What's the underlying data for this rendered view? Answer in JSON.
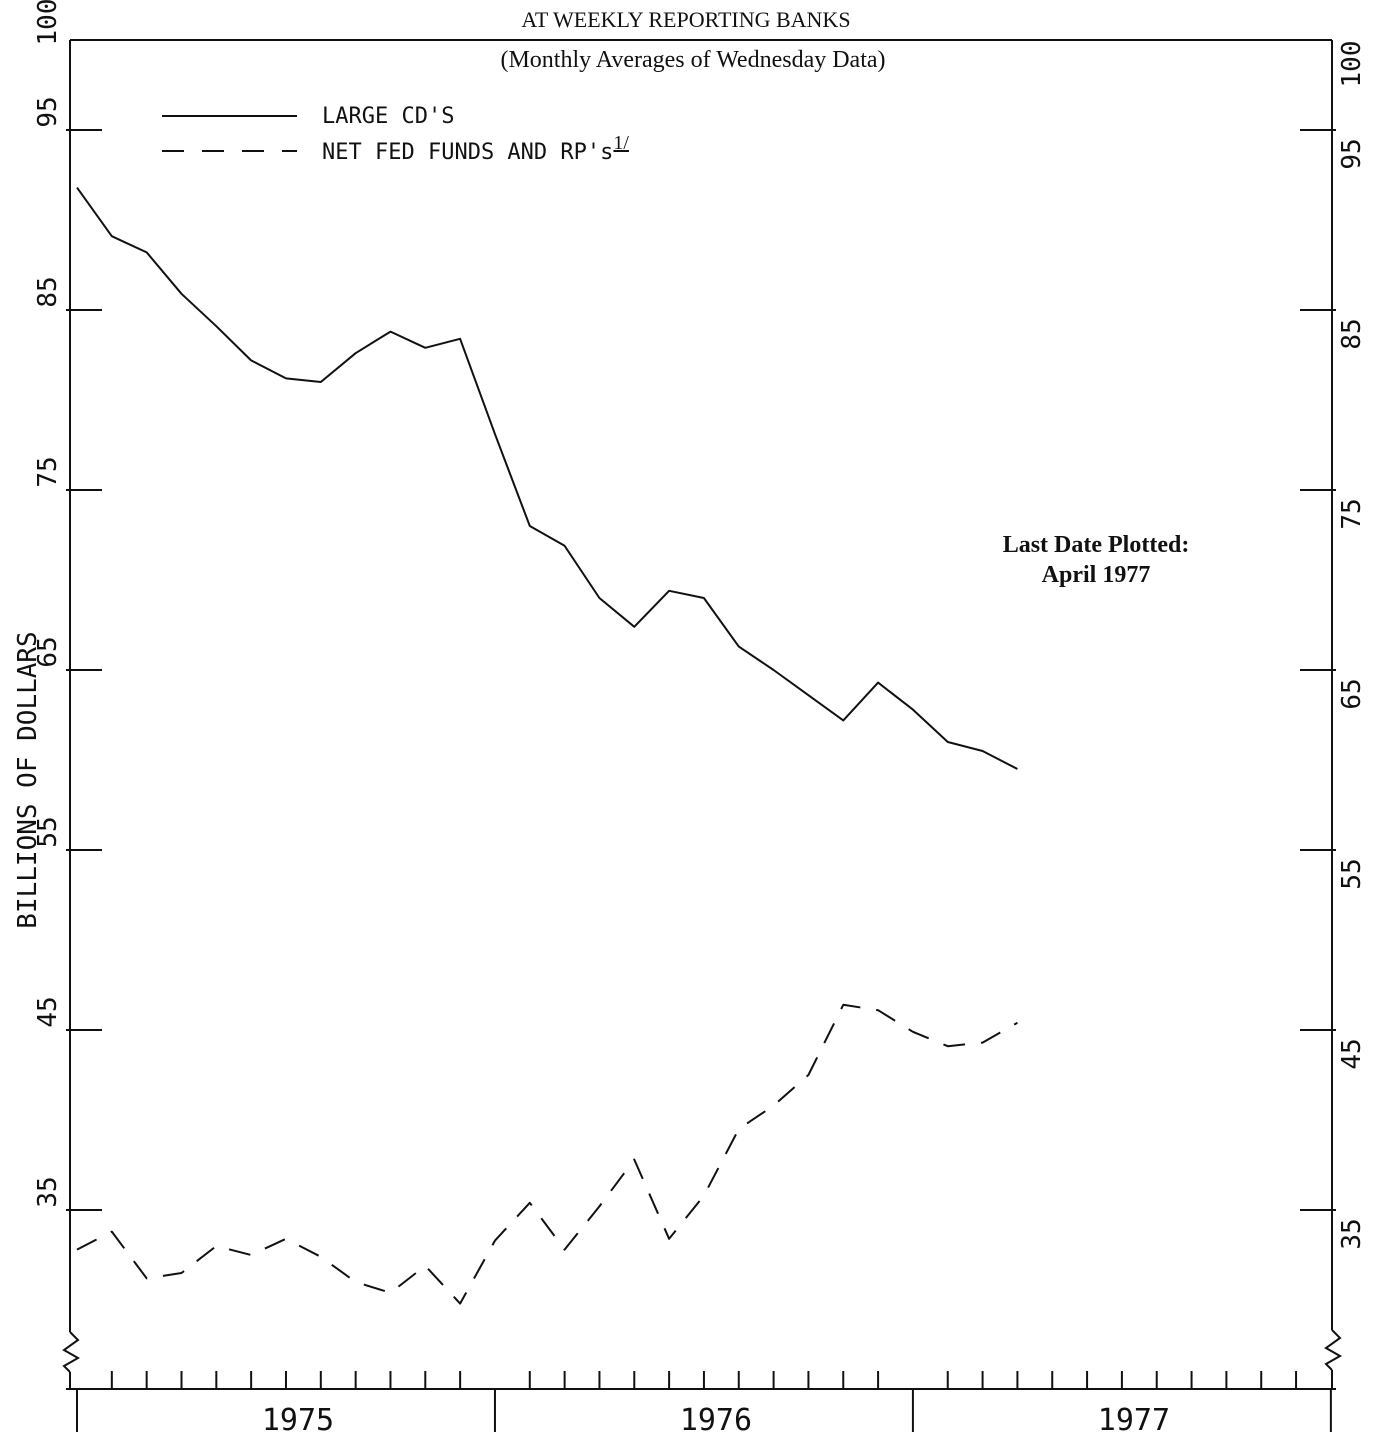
{
  "chart_data": {
    "type": "line",
    "title": "AT WEEKLY REPORTING BANKS",
    "subtitle": "(Monthly Averages of Wednesday Data)",
    "ylabel": "BILLIONS OF DOLLARS",
    "xlabel": "",
    "ylim": [
      30,
      100
    ],
    "y_ticks": [
      35,
      45,
      55,
      65,
      75,
      85,
      95,
      100
    ],
    "y_tick_labels": [
      "35",
      "45",
      "55",
      "65",
      "75",
      "85",
      "95",
      "100"
    ],
    "axis_break": true,
    "grid": false,
    "legend_position": "top-left",
    "x_range_months": [
      1,
      37
    ],
    "year_boundaries": [
      1,
      13,
      25,
      37
    ],
    "year_labels": [
      {
        "label": "1975",
        "month": 7
      },
      {
        "label": "1976",
        "month": 19
      },
      {
        "label": "1977",
        "month": 31
      }
    ],
    "x_months": [
      1,
      2,
      3,
      4,
      5,
      6,
      7,
      8,
      9,
      10,
      11,
      12,
      13,
      14,
      15,
      16,
      17,
      18,
      19,
      20,
      21,
      22,
      23,
      24,
      25,
      26,
      27,
      28
    ],
    "series": [
      {
        "name": "LARGE CD'S",
        "style": "solid",
        "color": "#111111",
        "values": [
          91.8,
          89.1,
          88.2,
          85.9,
          84.1,
          82.2,
          81.2,
          81.0,
          82.6,
          83.8,
          82.9,
          83.4,
          78.1,
          73.0,
          71.9,
          69.0,
          67.4,
          69.4,
          69.0,
          66.3,
          65.0,
          63.6,
          62.2,
          64.3,
          62.8,
          61.0,
          60.5,
          59.5
        ]
      },
      {
        "name": "NET FED FUNDS AND RP's",
        "name_suffix": "1/",
        "style": "dashed",
        "color": "#111111",
        "values": [
          32.8,
          33.8,
          31.2,
          31.5,
          33.0,
          32.5,
          33.4,
          32.4,
          31.0,
          30.4,
          31.9,
          29.8,
          33.3,
          35.4,
          32.8,
          35.2,
          37.8,
          33.4,
          35.8,
          39.5,
          40.8,
          42.5,
          46.4,
          46.1,
          44.9,
          44.1,
          44.3,
          45.4
        ]
      }
    ],
    "annotation": {
      "line1": "Last Date Plotted:",
      "line2": "April 1977"
    }
  }
}
